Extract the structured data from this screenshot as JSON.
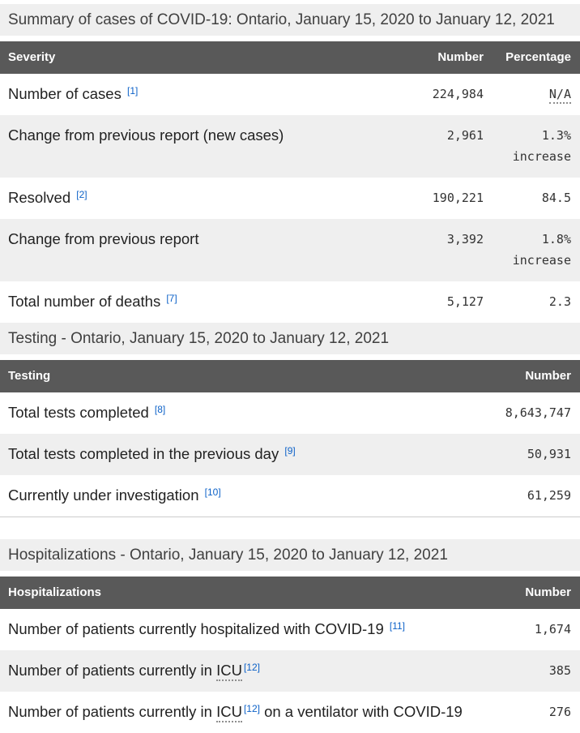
{
  "colors": {
    "header_bg": "#595959",
    "header_text": "#ffffff",
    "caption_bg": "#efefef",
    "stripe_bg": "#efefef",
    "row_bg": "#ffffff",
    "label_text": "#222222",
    "number_text": "#333333",
    "caption_text": "#404040",
    "footnote_link": "#0d62c8",
    "table_border": "#cccccc"
  },
  "sections": [
    {
      "id": "summary",
      "caption": "Summary of cases of COVID-19: Ontario, January 15, 2020 to January 12, 2021",
      "columns": [
        "Severity",
        "Number",
        "Percentage"
      ],
      "rows": [
        {
          "label": [
            [
              {
                "t": "text",
                "v": "Number of cases "
              },
              {
                "t": "sup",
                "v": "[1]"
              }
            ]
          ],
          "number": "224,984",
          "pct": [
            [
              {
                "t": "abbr",
                "v": "N/A"
              }
            ]
          ]
        },
        {
          "label": [
            [
              {
                "t": "text",
                "v": "Change from previous report (new cases)"
              }
            ]
          ],
          "number": "2,961",
          "pct": [
            [
              {
                "t": "text",
                "v": "1.3%"
              }
            ],
            [
              {
                "t": "text",
                "v": "increase"
              }
            ]
          ]
        },
        {
          "label": [
            [
              {
                "t": "text",
                "v": "Resolved "
              },
              {
                "t": "sup",
                "v": "[2]"
              }
            ]
          ],
          "number": "190,221",
          "pct": [
            [
              {
                "t": "text",
                "v": "84.5"
              }
            ]
          ]
        },
        {
          "label": [
            [
              {
                "t": "text",
                "v": "Change from previous report"
              }
            ]
          ],
          "number": "3,392",
          "pct": [
            [
              {
                "t": "text",
                "v": "1.8%"
              }
            ],
            [
              {
                "t": "text",
                "v": "increase"
              }
            ]
          ]
        },
        {
          "label": [
            [
              {
                "t": "text",
                "v": "Total number of deaths "
              },
              {
                "t": "sup",
                "v": "[7]"
              }
            ]
          ],
          "number": "5,127",
          "pct": [
            [
              {
                "t": "text",
                "v": "2.3"
              }
            ]
          ]
        }
      ]
    },
    {
      "id": "testing",
      "caption": "Testing - Ontario, January 15, 2020 to January 12, 2021",
      "columns": [
        "Testing",
        "Number"
      ],
      "rows": [
        {
          "label": [
            [
              {
                "t": "text",
                "v": "Total tests completed "
              },
              {
                "t": "sup",
                "v": "[8]"
              }
            ]
          ],
          "number": "8,643,747"
        },
        {
          "label": [
            [
              {
                "t": "text",
                "v": "Total tests completed in the previous day "
              },
              {
                "t": "sup",
                "v": "[9]"
              }
            ]
          ],
          "number": "50,931"
        },
        {
          "label": [
            [
              {
                "t": "text",
                "v": "Currently under investigation "
              },
              {
                "t": "sup",
                "v": "[10]"
              }
            ]
          ],
          "number": "61,259"
        }
      ]
    },
    {
      "id": "hospitalizations",
      "caption": "Hospitalizations - Ontario, January 15, 2020 to January 12, 2021",
      "columns": [
        "Hospitalizations",
        "Number"
      ],
      "rows": [
        {
          "label": [
            [
              {
                "t": "text",
                "v": "Number of patients currently hospitalized with COVID-19 "
              },
              {
                "t": "sup",
                "v": "[11]"
              }
            ]
          ],
          "number": "1,674"
        },
        {
          "label": [
            [
              {
                "t": "text",
                "v": "Number of patients currently in "
              },
              {
                "t": "abbr",
                "v": "ICU"
              },
              {
                "t": "sup",
                "v": "[12]"
              }
            ]
          ],
          "number": "385"
        },
        {
          "label": [
            [
              {
                "t": "text",
                "v": "Number of patients currently in "
              },
              {
                "t": "abbr",
                "v": "ICU"
              },
              {
                "t": "sup",
                "v": "[12]"
              },
              {
                "t": "text",
                "v": " on a ventilator with COVID-19"
              }
            ]
          ],
          "number": "276"
        }
      ]
    }
  ]
}
